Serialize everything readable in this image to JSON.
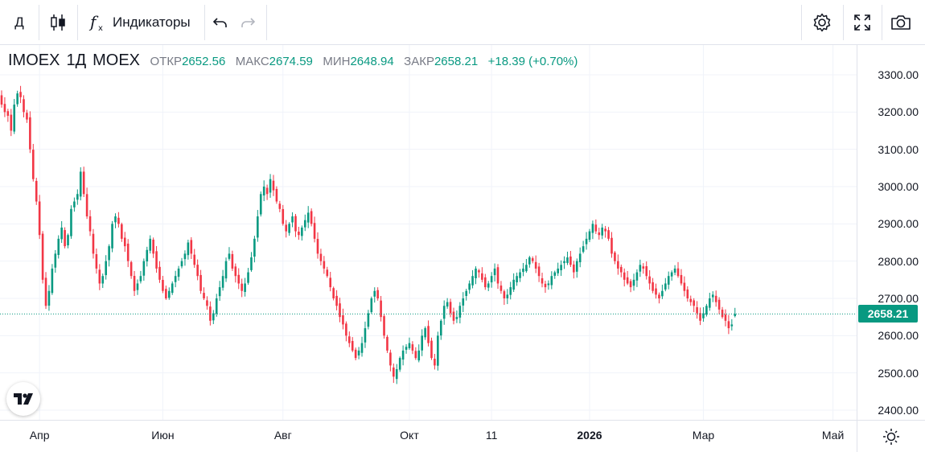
{
  "toolbar": {
    "interval": "Д",
    "indicators_label": "Индикаторы"
  },
  "legend": {
    "symbol": "IMOEX",
    "interval": "1Д",
    "exchange": "MOEX",
    "open_label": "ОТКР",
    "open": "2652.56",
    "high_label": "МАКС",
    "high": "2674.59",
    "low_label": "МИН",
    "low": "2648.94",
    "close_label": "ЗАКР",
    "close": "2658.21",
    "change": "+18.39 (+0.70%)"
  },
  "last_price_label": "2658.21",
  "colors": {
    "up": "#089981",
    "down": "#f23645",
    "grid": "#f0f3fa",
    "border": "#e0e3eb"
  },
  "chart_data": {
    "type": "candlestick",
    "ylim": [
      2380,
      3340
    ],
    "y_ticks": [
      "2400.00",
      "2500.00",
      "2600.00",
      "2700.00",
      "2800.00",
      "2900.00",
      "3000.00",
      "3100.00",
      "3200.00",
      "3300.00"
    ],
    "x_ticks": [
      {
        "label": "Апр",
        "bar": 12,
        "bold": false
      },
      {
        "label": "Июн",
        "bar": 51,
        "bold": false
      },
      {
        "label": "Авг",
        "bar": 89,
        "bold": false
      },
      {
        "label": "Окт",
        "bar": 129,
        "bold": false
      },
      {
        "label": "11",
        "bar": 155,
        "bold": false
      },
      {
        "label": "2026",
        "bar": 186,
        "bold": true
      },
      {
        "label": "Мар",
        "bar": 222,
        "bold": false
      },
      {
        "label": "Май",
        "bar": 263,
        "bold": false
      }
    ],
    "last_price": 2658.21,
    "ohlc_summary": {
      "open": 2652.56,
      "high": 2674.59,
      "low": 2648.94,
      "close": 2658.21
    },
    "closes": [
      3220,
      3200,
      3190,
      3150,
      3220,
      3250,
      3240,
      3200,
      3180,
      3100,
      3020,
      2960,
      2870,
      2750,
      2680,
      2720,
      2780,
      2820,
      2860,
      2890,
      2840,
      2870,
      2940,
      2960,
      2980,
      3040,
      2980,
      2920,
      2880,
      2820,
      2780,
      2740,
      2760,
      2800,
      2840,
      2900,
      2920,
      2900,
      2860,
      2840,
      2800,
      2760,
      2720,
      2740,
      2760,
      2800,
      2830,
      2860,
      2820,
      2780,
      2750,
      2720,
      2700,
      2720,
      2740,
      2760,
      2780,
      2800,
      2820,
      2850,
      2820,
      2790,
      2760,
      2720,
      2700,
      2680,
      2640,
      2660,
      2700,
      2730,
      2760,
      2800,
      2820,
      2780,
      2760,
      2740,
      2720,
      2740,
      2770,
      2810,
      2860,
      2920,
      2980,
      3000,
      2980,
      3020,
      2990,
      2960,
      2940,
      2900,
      2880,
      2900,
      2920,
      2880,
      2870,
      2890,
      2910,
      2930,
      2900,
      2860,
      2820,
      2800,
      2780,
      2760,
      2730,
      2700,
      2680,
      2650,
      2630,
      2600,
      2580,
      2560,
      2540,
      2560,
      2580,
      2620,
      2660,
      2700,
      2720,
      2700,
      2650,
      2600,
      2560,
      2520,
      2490,
      2510,
      2540,
      2560,
      2570,
      2580,
      2560,
      2540,
      2560,
      2600,
      2620,
      2580,
      2540,
      2520,
      2600,
      2640,
      2680,
      2690,
      2660,
      2640,
      2650,
      2680,
      2700,
      2720,
      2740,
      2760,
      2780,
      2770,
      2750,
      2730,
      2740,
      2760,
      2780,
      2740,
      2720,
      2700,
      2710,
      2730,
      2750,
      2760,
      2770,
      2780,
      2790,
      2810,
      2800,
      2780,
      2760,
      2740,
      2730,
      2740,
      2760,
      2770,
      2780,
      2790,
      2800,
      2810,
      2790,
      2770,
      2800,
      2820,
      2840,
      2860,
      2880,
      2900,
      2880,
      2870,
      2890,
      2880,
      2860,
      2820,
      2800,
      2780,
      2770,
      2750,
      2740,
      2730,
      2750,
      2770,
      2790,
      2780,
      2760,
      2740,
      2720,
      2710,
      2700,
      2720,
      2740,
      2760,
      2770,
      2780,
      2760,
      2740,
      2720,
      2700,
      2690,
      2680,
      2660,
      2640,
      2660,
      2680,
      2700,
      2710,
      2690,
      2670,
      2650,
      2640,
      2620,
      2630,
      2658.21
    ]
  }
}
